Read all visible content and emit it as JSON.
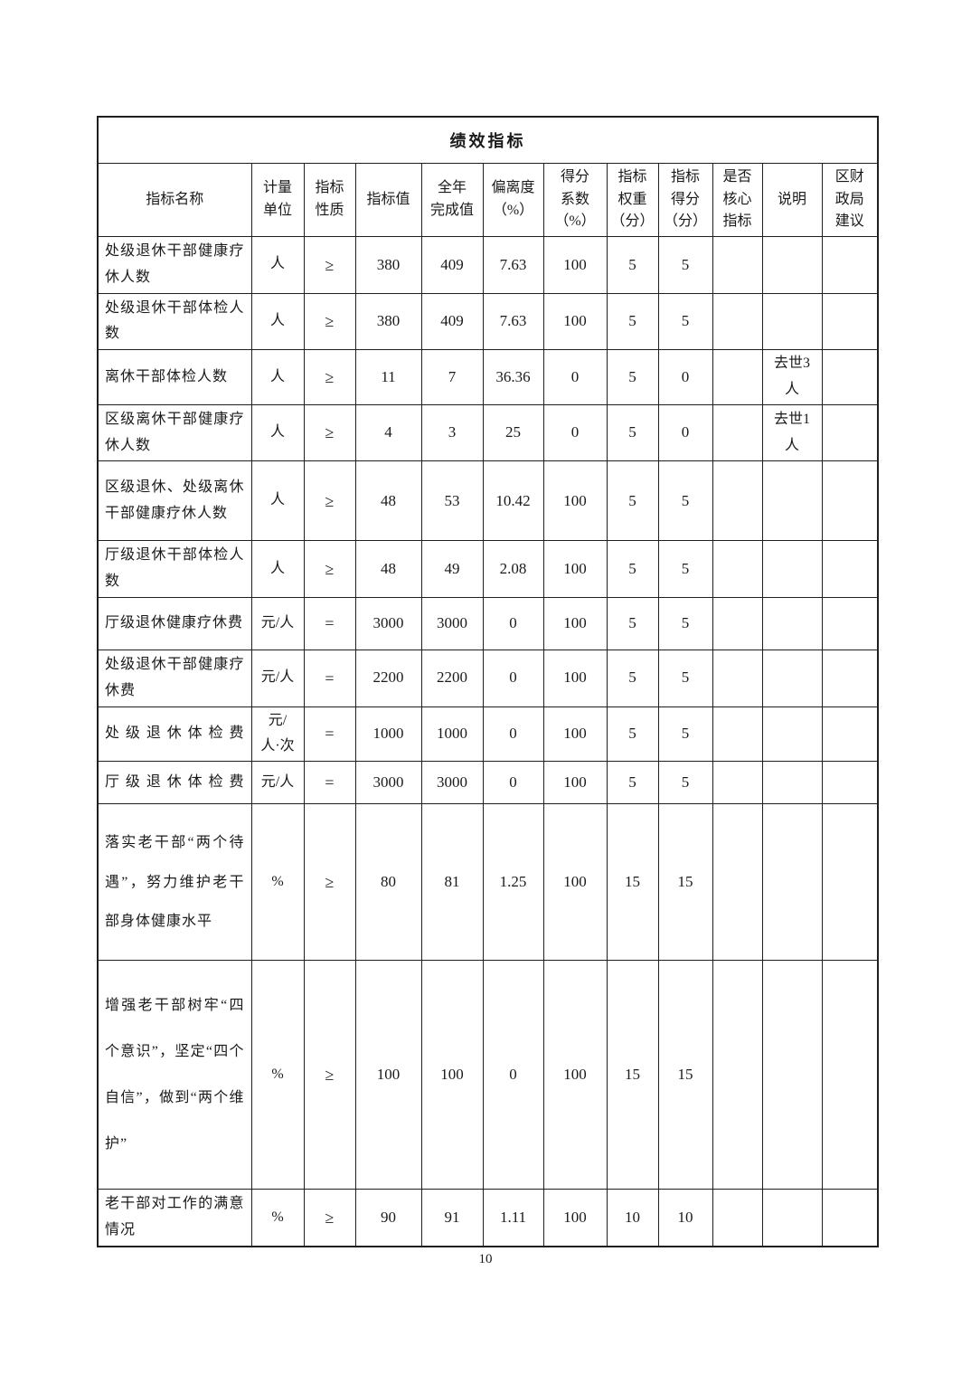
{
  "document": {
    "page_number": "10"
  },
  "table": {
    "title": "绩效指标",
    "columns": [
      "指标名称",
      "计量\n单位",
      "指标\n性质",
      "指标值",
      "全年\n完成值",
      "偏离度\n（%）",
      "得分\n系数\n（%）",
      "指标\n权重\n（分）",
      "指标\n得分\n（分）",
      "是否\n核心\n指标",
      "说明",
      "区财\n政局\n建议"
    ],
    "rows": [
      {
        "name": "处级退休干部健康疗休人数",
        "unit": "人",
        "nature": "≥",
        "target": "380",
        "completed": "409",
        "deviation": "7.63",
        "score_coeff": "100",
        "weight": "5",
        "score": "5",
        "core": "",
        "note": "",
        "suggestion": ""
      },
      {
        "name": "处级退休干部体检人数",
        "unit": "人",
        "nature": "≥",
        "target": "380",
        "completed": "409",
        "deviation": "7.63",
        "score_coeff": "100",
        "weight": "5",
        "score": "5",
        "core": "",
        "note": "",
        "suggestion": ""
      },
      {
        "name": "离休干部体检人数",
        "unit": "人",
        "nature": "≥",
        "target": "11",
        "completed": "7",
        "deviation": "36.36",
        "score_coeff": "0",
        "weight": "5",
        "score": "0",
        "core": "",
        "note": "去世3\n人",
        "suggestion": ""
      },
      {
        "name": "区级离休干部健康疗休人数",
        "unit": "人",
        "nature": "≥",
        "target": "4",
        "completed": "3",
        "deviation": "25",
        "score_coeff": "0",
        "weight": "5",
        "score": "0",
        "core": "",
        "note": "去世1\n人",
        "suggestion": ""
      },
      {
        "name": "区级退休、处级离休干部健康疗休人数",
        "unit": "人",
        "nature": "≥",
        "target": "48",
        "completed": "53",
        "deviation": "10.42",
        "score_coeff": "100",
        "weight": "5",
        "score": "5",
        "core": "",
        "note": "",
        "suggestion": ""
      },
      {
        "name": "厅级退休干部体检人数",
        "unit": "人",
        "nature": "≥",
        "target": "48",
        "completed": "49",
        "deviation": "2.08",
        "score_coeff": "100",
        "weight": "5",
        "score": "5",
        "core": "",
        "note": "",
        "suggestion": ""
      },
      {
        "name": "厅级退休健康疗休费",
        "unit": "元/人",
        "nature": "=",
        "target": "3000",
        "completed": "3000",
        "deviation": "0",
        "score_coeff": "100",
        "weight": "5",
        "score": "5",
        "core": "",
        "note": "",
        "suggestion": ""
      },
      {
        "name": "处级退休干部健康疗休费",
        "unit": "元/人",
        "nature": "=",
        "target": "2200",
        "completed": "2200",
        "deviation": "0",
        "score_coeff": "100",
        "weight": "5",
        "score": "5",
        "core": "",
        "note": "",
        "suggestion": ""
      },
      {
        "name": "处级退休体检费",
        "unit": "元/\n人·次",
        "nature": "=",
        "target": "1000",
        "completed": "1000",
        "deviation": "0",
        "score_coeff": "100",
        "weight": "5",
        "score": "5",
        "core": "",
        "note": "",
        "suggestion": ""
      },
      {
        "name": "厅级退休体检费",
        "unit": "元/人",
        "nature": "=",
        "target": "3000",
        "completed": "3000",
        "deviation": "0",
        "score_coeff": "100",
        "weight": "5",
        "score": "5",
        "core": "",
        "note": "",
        "suggestion": ""
      },
      {
        "name": "落实老干部“两个待遇”，努力维护老干部身体健康水平",
        "unit": "%",
        "nature": "≥",
        "target": "80",
        "completed": "81",
        "deviation": "1.25",
        "score_coeff": "100",
        "weight": "15",
        "score": "15",
        "core": "",
        "note": "",
        "suggestion": ""
      },
      {
        "name": "增强老干部树牢“四个意识”，坚定“四个自信”，做到“两个维护”",
        "unit": "%",
        "nature": "≥",
        "target": "100",
        "completed": "100",
        "deviation": "0",
        "score_coeff": "100",
        "weight": "15",
        "score": "15",
        "core": "",
        "note": "",
        "suggestion": ""
      },
      {
        "name": "老干部对工作的满意情况",
        "unit": "%",
        "nature": "≥",
        "target": "90",
        "completed": "91",
        "deviation": "1.11",
        "score_coeff": "100",
        "weight": "10",
        "score": "10",
        "core": "",
        "note": "",
        "suggestion": ""
      }
    ]
  }
}
